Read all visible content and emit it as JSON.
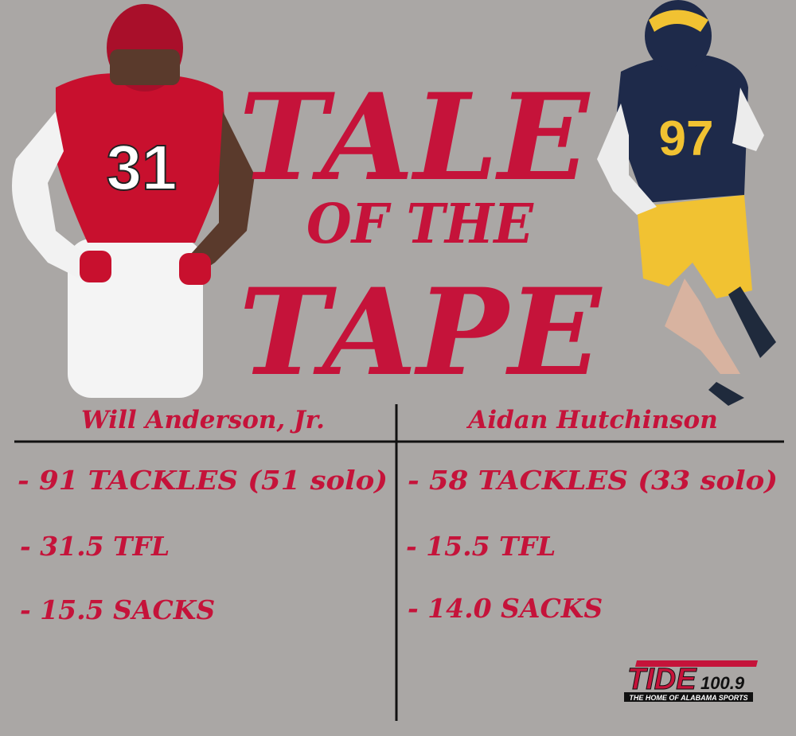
{
  "header": {
    "title_lines": [
      "TALE",
      "OF THE",
      "TAPE"
    ]
  },
  "players": [
    {
      "name": "Will Anderson, Jr.",
      "jersey": "31",
      "stats": [
        "- 91 TACKLES (51 solo)",
        "- 31.5 TFL",
        "- 15.5 SACKS"
      ]
    },
    {
      "name": "Aidan Hutchinson",
      "jersey": "97",
      "stats": [
        "- 58 TACKLES (33 solo)",
        "- 15.5 TFL",
        "- 14.0 SACKS"
      ]
    }
  ],
  "logo": {
    "brand": "TIDE",
    "frequency": "100.9",
    "tagline": "THE HOME OF ALABAMA SPORTS"
  }
}
